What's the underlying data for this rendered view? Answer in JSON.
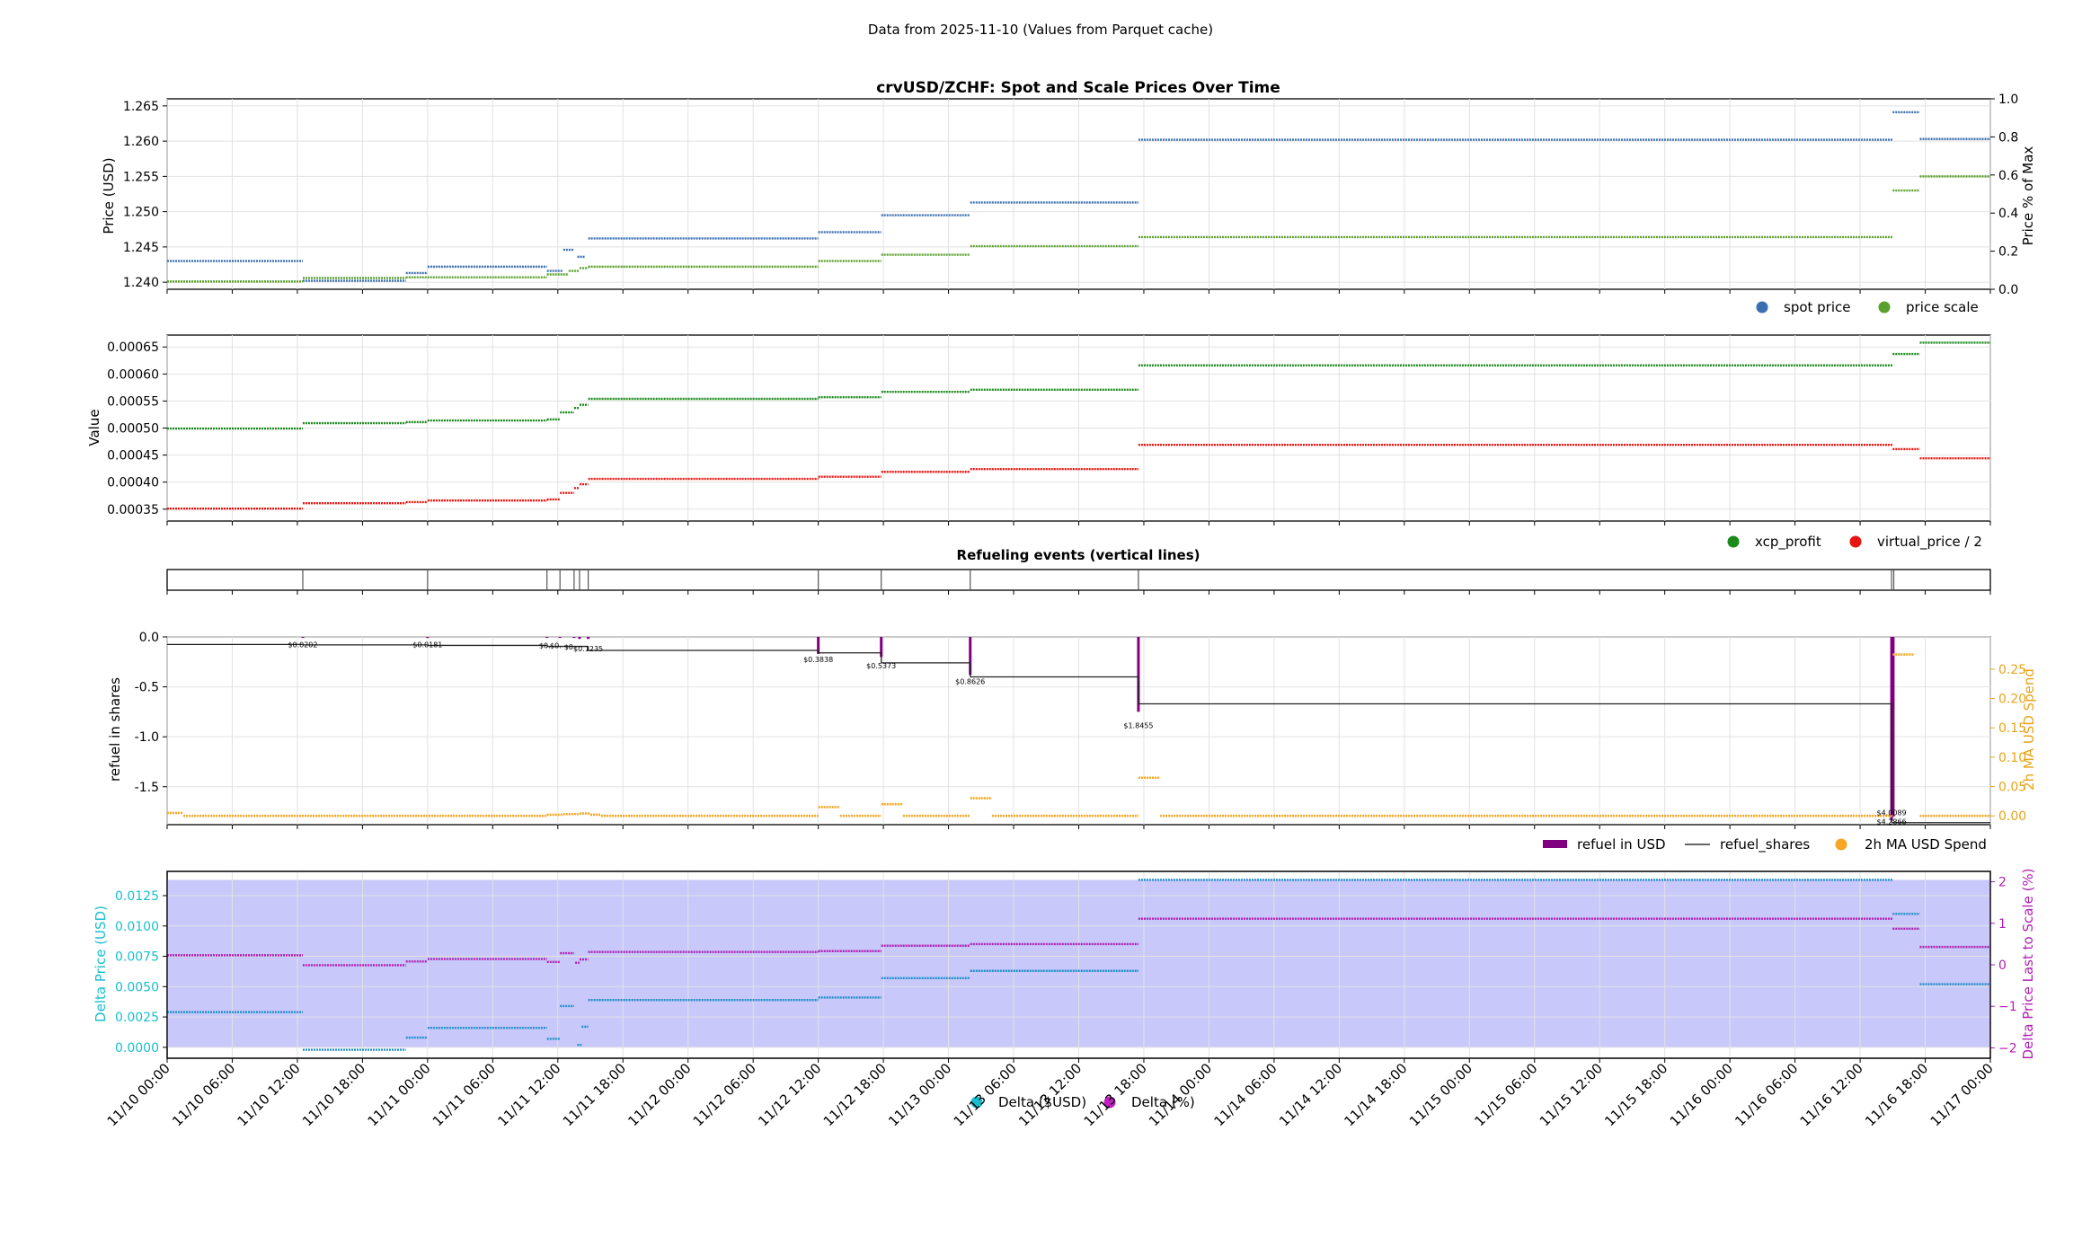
{
  "figure": {
    "suptitle": "Data from 2025-11-10 (Values from Parquet cache)"
  },
  "x_axis": {
    "tick_labels": [
      "11/10 00:00",
      "11/10 06:00",
      "11/10 12:00",
      "11/10 18:00",
      "11/11 00:00",
      "11/11 06:00",
      "11/11 12:00",
      "11/11 18:00",
      "11/12 00:00",
      "11/12 06:00",
      "11/12 12:00",
      "11/12 18:00",
      "11/13 00:00",
      "11/13 06:00",
      "11/13 12:00",
      "11/13 18:00",
      "11/14 00:00",
      "11/14 06:00",
      "11/14 12:00",
      "11/14 18:00",
      "11/15 00:00",
      "11/15 06:00",
      "11/15 12:00",
      "11/15 18:00",
      "11/16 00:00",
      "11/16 06:00",
      "11/16 12:00",
      "11/16 18:00",
      "11/17 00:00"
    ],
    "range_hours": [
      0,
      168
    ]
  },
  "chart_data": [
    {
      "type": "line",
      "title": "crvUSD/ZCHF: Spot and Scale Prices Over Time",
      "ylabel": "Price (USD)",
      "ylim": [
        1.239,
        1.266
      ],
      "yticks": [
        "1.240",
        "1.245",
        "1.250",
        "1.255",
        "1.260",
        "1.265"
      ],
      "ylabel_right": "Price % of Max",
      "yticks_right": [
        "0.0",
        "0.2",
        "0.4",
        "0.6",
        "0.8",
        "1.0"
      ],
      "grid": true,
      "legend": "bottom-right",
      "series": [
        {
          "name": "spot price",
          "color": "#3a6fb0",
          "steps": [
            [
              0,
              12.5,
              1.243
            ],
            [
              12.5,
              22,
              1.2402
            ],
            [
              22,
              24,
              1.2413
            ],
            [
              24,
              35,
              1.2422
            ],
            [
              35,
              36.5,
              1.2416
            ],
            [
              36.5,
              37.5,
              1.2446
            ],
            [
              37.8,
              38.5,
              1.2436
            ],
            [
              38.8,
              60,
              1.2462
            ],
            [
              60,
              65.8,
              1.2471
            ],
            [
              65.8,
              74,
              1.2495
            ],
            [
              74,
              89.5,
              1.2513
            ],
            [
              89.5,
              159,
              1.2602
            ],
            [
              159,
              161.5,
              1.2641
            ],
            [
              161.5,
              168,
              1.2603
            ]
          ]
        },
        {
          "name": "price scale",
          "color": "#5aa02c",
          "steps": [
            [
              0,
              12.5,
              1.2401
            ],
            [
              12.5,
              22,
              1.2406
            ],
            [
              22,
              35,
              1.2407
            ],
            [
              35,
              37,
              1.2411
            ],
            [
              37,
              38,
              1.2416
            ],
            [
              38,
              38.8,
              1.242
            ],
            [
              38.8,
              60,
              1.2422
            ],
            [
              60,
              65.8,
              1.243
            ],
            [
              65.8,
              74,
              1.2439
            ],
            [
              74,
              89.5,
              1.2451
            ],
            [
              89.5,
              159,
              1.2464
            ],
            [
              159,
              161.5,
              1.253
            ],
            [
              161.5,
              168,
              1.255
            ]
          ]
        }
      ]
    },
    {
      "type": "line",
      "ylabel": "Value",
      "ylim": [
        0.000328,
        0.000672
      ],
      "yticks": [
        "0.00035",
        "0.00040",
        "0.00045",
        "0.00050",
        "0.00055",
        "0.00060",
        "0.00065"
      ],
      "grid": true,
      "legend": "bottom-right",
      "series": [
        {
          "name": "xcp_profit",
          "color": "#1a8a1a",
          "steps": [
            [
              0,
              12.5,
              0.000499
            ],
            [
              12.5,
              22,
              0.000509
            ],
            [
              22,
              24,
              0.000511
            ],
            [
              24,
              35,
              0.000514
            ],
            [
              35,
              36.2,
              0.000516
            ],
            [
              36.2,
              37.5,
              0.000529
            ],
            [
              37.5,
              38,
              0.000537
            ],
            [
              38,
              38.8,
              0.000543
            ],
            [
              38.8,
              60,
              0.000554
            ],
            [
              60,
              65.8,
              0.000557
            ],
            [
              65.8,
              74,
              0.000567
            ],
            [
              74,
              89.5,
              0.000571
            ],
            [
              89.5,
              159,
              0.000616
            ],
            [
              159,
              161.5,
              0.000637
            ],
            [
              161.5,
              168,
              0.000658
            ]
          ]
        },
        {
          "name": "virtual_price / 2",
          "color": "#e8140f",
          "steps": [
            [
              0,
              12.5,
              0.000351
            ],
            [
              12.5,
              22,
              0.000361
            ],
            [
              22,
              24,
              0.000363
            ],
            [
              24,
              35,
              0.000366
            ],
            [
              35,
              36.2,
              0.000368
            ],
            [
              36.2,
              37.5,
              0.00038
            ],
            [
              37.5,
              38,
              0.000389
            ],
            [
              38,
              38.8,
              0.000396
            ],
            [
              38.8,
              60,
              0.000406
            ],
            [
              60,
              65.8,
              0.00041
            ],
            [
              65.8,
              74,
              0.000419
            ],
            [
              74,
              89.5,
              0.000424
            ],
            [
              89.5,
              159,
              0.000469
            ],
            [
              159,
              161.5,
              0.000461
            ],
            [
              161.5,
              168,
              0.000444
            ]
          ]
        }
      ]
    },
    {
      "type": "line",
      "title": "Refueling events (vertical lines)",
      "event_hours": [
        12.5,
        24,
        35,
        36.2,
        37.5,
        38,
        38.8,
        60,
        65.8,
        74,
        89.5,
        158.9,
        159.1
      ]
    },
    {
      "type": "line",
      "ylabel": "refuel in shares",
      "ylim": [
        -1.88,
        0.0
      ],
      "yticks": [
        "0.0",
        "-0.5",
        "-1.0",
        "-1.5"
      ],
      "ylabel_right": "2h MA USD Spend",
      "ylim_right": [
        -0.015,
        0.305
      ],
      "yticks_right": [
        "0.00",
        "0.05",
        "0.10",
        "0.15",
        "0.20",
        "0.25"
      ],
      "grid": true,
      "legend": "bottom-right",
      "series": [
        {
          "name": "refuel in USD",
          "color": "#800080",
          "bars": [
            [
              12.5,
              -0.01
            ],
            [
              24,
              -0.01
            ],
            [
              35,
              -0.01
            ],
            [
              36.2,
              -0.01
            ],
            [
              37.5,
              -0.01
            ],
            [
              38,
              -0.02
            ],
            [
              38.8,
              -0.02
            ],
            [
              60,
              -0.17
            ],
            [
              65.8,
              -0.2
            ],
            [
              74,
              -0.38
            ],
            [
              89.5,
              -0.75
            ],
            [
              158.9,
              -1.84
            ],
            [
              159.05,
              -1.8
            ]
          ]
        },
        {
          "name": "refuel_shares",
          "color": "#000000",
          "steps": [
            [
              0,
              12.5,
              -0.075
            ],
            [
              12.5,
              24,
              -0.08
            ],
            [
              24,
              35,
              -0.085
            ],
            [
              35,
              38.8,
              -0.095
            ],
            [
              38.8,
              60,
              -0.135
            ],
            [
              60,
              65.8,
              -0.16
            ],
            [
              65.8,
              74,
              -0.26
            ],
            [
              74,
              89.5,
              -0.4
            ],
            [
              89.5,
              158.9,
              -0.67
            ],
            [
              158.9,
              168,
              -1.86
            ]
          ]
        },
        {
          "name": "2h MA USD Spend",
          "color": "#f5a623",
          "steps": [
            [
              0,
              1.5,
              0.005
            ],
            [
              1.5,
              35,
              0.0
            ],
            [
              35,
              36.5,
              0.002
            ],
            [
              36.5,
              38,
              0.003
            ],
            [
              38,
              39,
              0.004
            ],
            [
              39,
              40,
              0.002
            ],
            [
              40,
              60,
              0.0
            ],
            [
              60,
              62,
              0.015
            ],
            [
              62,
              65.8,
              0.0
            ],
            [
              65.8,
              67.8,
              0.02
            ],
            [
              67.8,
              74,
              0.0
            ],
            [
              74,
              76,
              0.03
            ],
            [
              76,
              89.5,
              0.0
            ],
            [
              89.5,
              91.5,
              0.065
            ],
            [
              91.5,
              159,
              0.0
            ],
            [
              159,
              161,
              0.275
            ],
            [
              161.5,
              168,
              0.0
            ]
          ]
        }
      ],
      "annotations": [
        {
          "text": "$0.0202",
          "x": 12.5,
          "y": -0.05
        },
        {
          "text": "$0.0181",
          "x": 24,
          "y": -0.05
        },
        {
          "text": "$0.",
          "x": 34.8,
          "y": -0.06
        },
        {
          "text": "$0.",
          "x": 35.8,
          "y": -0.06
        },
        {
          "text": "$0.",
          "x": 37.1,
          "y": -0.07
        },
        {
          "text": "$0.1235",
          "x": 38.8,
          "y": -0.09
        },
        {
          "text": "$0.3838",
          "x": 60,
          "y": -0.2
        },
        {
          "text": "$0.5373",
          "x": 65.8,
          "y": -0.26
        },
        {
          "text": "$0.8626",
          "x": 74,
          "y": -0.42
        },
        {
          "text": "$1.8455",
          "x": 89.5,
          "y": -0.86
        },
        {
          "text": "$4.0089",
          "x": 158.9,
          "y": -1.73
        },
        {
          "text": "$4.2866",
          "x": 158.9,
          "y": -1.82
        }
      ]
    },
    {
      "type": "line",
      "ylabel": "Delta Price (USD)",
      "ylim": [
        -0.0009,
        0.0145
      ],
      "yticks": [
        "0.0000",
        "0.0025",
        "0.0050",
        "0.0075",
        "0.0100",
        "0.0125"
      ],
      "ylabel_right": "Delta Price Last to Scale (%)",
      "ylim_right": [
        -2.25,
        2.25
      ],
      "yticks_right": [
        "−2",
        "−1",
        "0",
        "1",
        "2"
      ],
      "shaded_band": [
        0.0,
        0.0138
      ],
      "grid": true,
      "legend": "bottom-center",
      "series": [
        {
          "name": "Delta ($USD)",
          "color": "#1e90c8",
          "steps": [
            [
              0,
              12.5,
              0.0029
            ],
            [
              12.5,
              22,
              -0.0002
            ],
            [
              22,
              24,
              0.0008
            ],
            [
              24,
              35,
              0.0016
            ],
            [
              35,
              36.2,
              0.0007
            ],
            [
              36.2,
              37.5,
              0.0034
            ],
            [
              37.8,
              38.2,
              0.0002
            ],
            [
              38.2,
              38.8,
              0.0017
            ],
            [
              38.8,
              60,
              0.0039
            ],
            [
              60,
              65.8,
              0.0041
            ],
            [
              65.8,
              74,
              0.0057
            ],
            [
              74,
              89.5,
              0.0063
            ],
            [
              89.5,
              159,
              0.0138
            ],
            [
              159,
              161.5,
              0.011
            ],
            [
              161.5,
              168,
              0.0052
            ]
          ]
        },
        {
          "name": "Delta (%)",
          "color": "#b020b0",
          "steps": [
            [
              0,
              12.5,
              0.23
            ],
            [
              12.5,
              22,
              -0.01
            ],
            [
              22,
              24,
              0.08
            ],
            [
              24,
              35,
              0.14
            ],
            [
              35,
              36.2,
              0.07
            ],
            [
              36.2,
              37.5,
              0.28
            ],
            [
              37.6,
              38,
              0.05
            ],
            [
              38,
              38.8,
              0.13
            ],
            [
              38.8,
              60,
              0.31
            ],
            [
              60,
              65.8,
              0.33
            ],
            [
              65.8,
              74,
              0.46
            ],
            [
              74,
              89.5,
              0.5
            ],
            [
              89.5,
              159,
              1.11
            ],
            [
              159,
              161.5,
              0.87
            ],
            [
              161.5,
              168,
              0.43
            ]
          ]
        }
      ]
    }
  ]
}
